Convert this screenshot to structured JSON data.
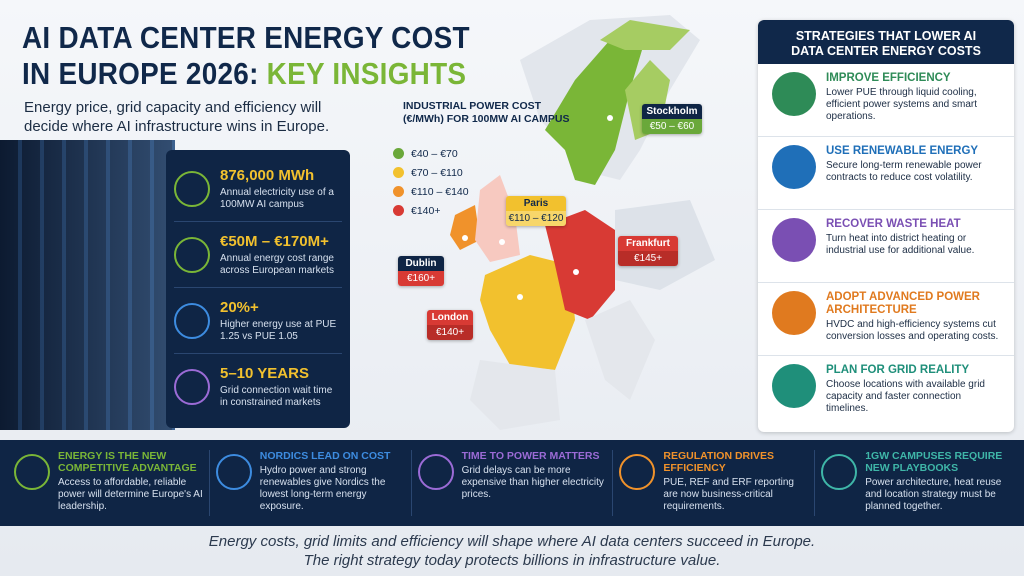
{
  "header": {
    "title_line1": "AI DATA CENTER ENERGY COST",
    "title_line2_a": "IN EUROPE 2026:",
    "title_line2_b": "KEY INSIGHTS",
    "subtitle": "Energy price, grid capacity and efficiency will decide where AI infrastructure wins in Europe."
  },
  "stats": [
    {
      "value": "876,000 MWh",
      "label": "Annual electricity use of a 100MW AI campus"
    },
    {
      "value": "€50M – €170M+",
      "label": "Annual energy cost range across European markets"
    },
    {
      "value": "20%+",
      "label": "Higher energy use at PUE 1.25 vs PUE 1.05"
    },
    {
      "value": "5–10 YEARS",
      "label": "Grid connection wait time in constrained markets"
    }
  ],
  "map": {
    "title": "INDUSTRIAL POWER COST (€/MWh) FOR 100MW AI CAMPUS",
    "legend": [
      {
        "label": "€40 – €70",
        "color": "#6aa83a"
      },
      {
        "label": "€70 – €110",
        "color": "#f2c12e"
      },
      {
        "label": "€110 – €140",
        "color": "#f0922b"
      },
      {
        "label": "€140+",
        "color": "#d83a34"
      }
    ],
    "cities": [
      {
        "name": "Stockholm",
        "price": "€50 – €60"
      },
      {
        "name": "Paris",
        "price": "€110 – €120"
      },
      {
        "name": "Frankfurt",
        "price": "€145+"
      },
      {
        "name": "Dublin",
        "price": "€160+"
      },
      {
        "name": "London",
        "price": "€140+"
      }
    ]
  },
  "strategies": {
    "title": "STRATEGIES THAT LOWER AI DATA CENTER ENERGY COSTS",
    "items": [
      {
        "title": "IMPROVE EFFICIENCY",
        "text": "Lower PUE through liquid cooling, efficient power systems and smart operations."
      },
      {
        "title": "USE RENEWABLE ENERGY",
        "text": "Secure long-term renewable power contracts to reduce cost volatility."
      },
      {
        "title": "RECOVER WASTE HEAT",
        "text": "Turn heat into district heating or industrial use for additional value."
      },
      {
        "title": "ADOPT ADVANCED POWER ARCHITECTURE",
        "text": "HVDC and high-efficiency systems cut conversion losses and operating costs."
      },
      {
        "title": "PLAN FOR GRID REALITY",
        "text": "Choose locations with available grid capacity and faster connection timelines."
      }
    ]
  },
  "insights": [
    {
      "title": "ENERGY IS THE NEW COMPETITIVE ADVANTAGE",
      "text": "Access to affordable, reliable power will determine Europe's AI leadership."
    },
    {
      "title": "NORDICS LEAD ON COST",
      "text": "Hydro power and strong renewables give Nordics the lowest long-term energy exposure."
    },
    {
      "title": "TIME TO POWER MATTERS",
      "text": "Grid delays can be more expensive than higher electricity prices."
    },
    {
      "title": "REGULATION DRIVES EFFICIENCY",
      "text": "PUE, REF and ERF reporting are now business-critical requirements."
    },
    {
      "title": "1GW CAMPUSES REQUIRE NEW PLAYBOOKS",
      "text": "Power architecture, heat reuse and location strategy must be planned together."
    }
  ],
  "footer": {
    "line1": "Energy costs, grid limits and efficiency will shape where AI data centers succeed in Europe.",
    "line2": "The right strategy today protects billions in infrastructure value."
  }
}
